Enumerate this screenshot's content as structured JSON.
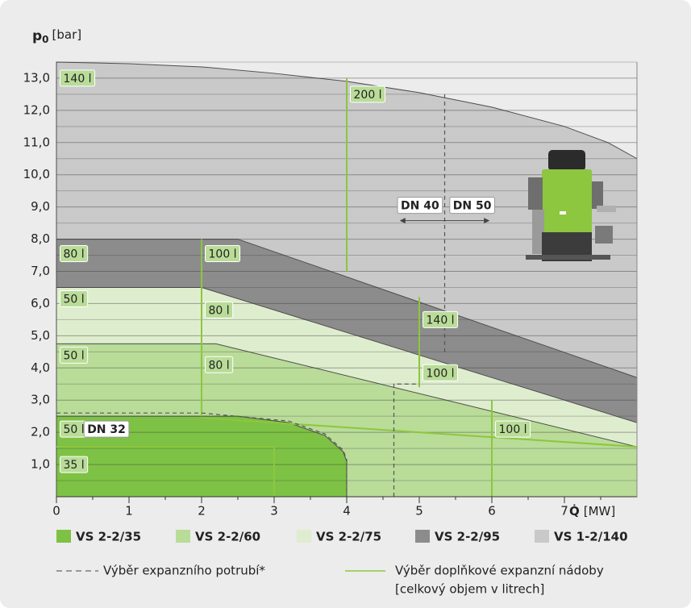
{
  "chart_data": {
    "type": "area",
    "y_label_symbol": "p",
    "y_label_sub": "0",
    "y_label_unit": "[bar]",
    "x_label_symbol": "Q̇",
    "x_label_unit": "[MW]",
    "xlim": [
      0,
      8
    ],
    "ylim": [
      0,
      14
    ],
    "xticks": [
      0,
      1,
      2,
      3,
      4,
      5,
      6,
      7
    ],
    "x_minor_ticks": [
      0.5,
      1.5,
      2.5,
      3.5,
      4.5,
      5.5,
      6.5,
      7.5
    ],
    "yticks": [
      {
        "value": 1,
        "label": "1,0"
      },
      {
        "value": 2,
        "label": "2,0"
      },
      {
        "value": 3,
        "label": "3,0"
      },
      {
        "value": 4,
        "label": "4,0"
      },
      {
        "value": 5,
        "label": "5,0"
      },
      {
        "value": 6,
        "label": "6,0"
      },
      {
        "value": 7,
        "label": "7,0"
      },
      {
        "value": 8,
        "label": "8,0"
      },
      {
        "value": 9,
        "label": "9,0"
      },
      {
        "value": 10,
        "label": "10,0"
      },
      {
        "value": 11,
        "label": "11,0"
      },
      {
        "value": 12,
        "label": "12,0"
      },
      {
        "value": 13,
        "label": "13,0"
      }
    ],
    "y_minor_ticks": [
      0.5,
      1.5,
      2.5,
      3.5,
      4.5,
      5.5,
      6.5,
      7.5,
      8.5,
      9.5,
      10.5,
      11.5,
      12.5,
      13.5
    ],
    "grid": true,
    "series": [
      {
        "name": "VS 1-2/140",
        "color": "#c9c9c9",
        "x": [
          0,
          1,
          2,
          3,
          4,
          5,
          6,
          7,
          7.6,
          8
        ],
        "values": [
          13.5,
          13.45,
          13.35,
          13.15,
          12.9,
          12.55,
          12.1,
          11.5,
          11.0,
          10.5
        ]
      },
      {
        "name": "VS 2-2/95",
        "color": "#8c8c8c",
        "x": [
          0,
          2.5,
          8
        ],
        "values": [
          8.0,
          8.0,
          3.7
        ]
      },
      {
        "name": "VS 2-2/75",
        "color": "#dfedcf",
        "x": [
          0,
          2,
          8
        ],
        "values": [
          6.5,
          6.5,
          2.3
        ]
      },
      {
        "name": "VS 2-2/60",
        "color": "#b9dc98",
        "x": [
          0,
          2.2,
          8
        ],
        "values": [
          4.75,
          4.75,
          1.55
        ]
      },
      {
        "name": "VS 2-2/35",
        "color": "#7dc244",
        "x": [
          0,
          2.5,
          3.2,
          3.7,
          3.95,
          4.0
        ],
        "values": [
          2.5,
          2.5,
          2.3,
          1.9,
          1.4,
          1.1
        ]
      }
    ],
    "legend_order": [
      4,
      3,
      2,
      1,
      0
    ],
    "vessel_lines": [
      {
        "x": [
          4,
          4
        ],
        "y": [
          13,
          7
        ]
      },
      {
        "x": [
          2,
          2
        ],
        "y": [
          8,
          2.5
        ]
      },
      {
        "x": [
          5,
          5
        ],
        "y": [
          6.2,
          3.4
        ]
      },
      {
        "x": [
          6,
          6
        ],
        "y": [
          3,
          0
        ]
      },
      {
        "x": [
          3,
          3,
          0
        ],
        "y": [
          0,
          1.55,
          1.55
        ]
      },
      {
        "x": [
          2,
          8
        ],
        "y": [
          2.45,
          1.55
        ]
      }
    ],
    "pipe_lines": [
      {
        "x": [
          0,
          2,
          3.2,
          3.7,
          3.95,
          4.0,
          4.0
        ],
        "y": [
          2.6,
          2.6,
          2.35,
          1.95,
          1.45,
          1.15,
          0
        ]
      },
      {
        "x": [
          5.35,
          5.35
        ],
        "y": [
          12.5,
          4.4
        ]
      },
      {
        "x": [
          4.65,
          4.65,
          5.0
        ],
        "y": [
          0,
          3.5,
          3.5
        ]
      }
    ],
    "annotations": [
      {
        "text": "140 l",
        "x": 0.05,
        "y": 13.0,
        "style": "vessel"
      },
      {
        "text": "200 l",
        "x": 4.05,
        "y": 12.5,
        "style": "vessel"
      },
      {
        "text": "80 l",
        "x": 0.05,
        "y": 7.55,
        "style": "vessel"
      },
      {
        "text": "100 l",
        "x": 2.05,
        "y": 7.55,
        "style": "vessel"
      },
      {
        "text": "50 l",
        "x": 0.05,
        "y": 6.15,
        "style": "vessel"
      },
      {
        "text": "80 l",
        "x": 2.05,
        "y": 5.8,
        "style": "vessel"
      },
      {
        "text": "140 l",
        "x": 5.05,
        "y": 5.5,
        "style": "vessel"
      },
      {
        "text": "100 l",
        "x": 5.05,
        "y": 3.85,
        "style": "vessel"
      },
      {
        "text": "50 l",
        "x": 0.05,
        "y": 4.4,
        "style": "vessel"
      },
      {
        "text": "80 l",
        "x": 2.05,
        "y": 4.1,
        "style": "vessel"
      },
      {
        "text": "100 l",
        "x": 6.05,
        "y": 2.1,
        "style": "vessel"
      },
      {
        "text": "50 l",
        "x": 0.05,
        "y": 2.1,
        "style": "vessel"
      },
      {
        "text": "DN 32",
        "x": 0.38,
        "y": 2.1,
        "style": "pipe"
      },
      {
        "text": "35 l",
        "x": 0.05,
        "y": 1.0,
        "style": "vessel"
      },
      {
        "text": "DN 40",
        "x": 4.7,
        "y": 9.05,
        "style": "pipe"
      },
      {
        "text": "DN 50",
        "x": 5.42,
        "y": 9.05,
        "style": "pipe"
      }
    ],
    "pipe_legend": "Výběr expanzního potrubí*",
    "vessel_legend": [
      "Výběr doplňkové expanzní nádoby",
      "[celkový objem v litrech]"
    ]
  }
}
